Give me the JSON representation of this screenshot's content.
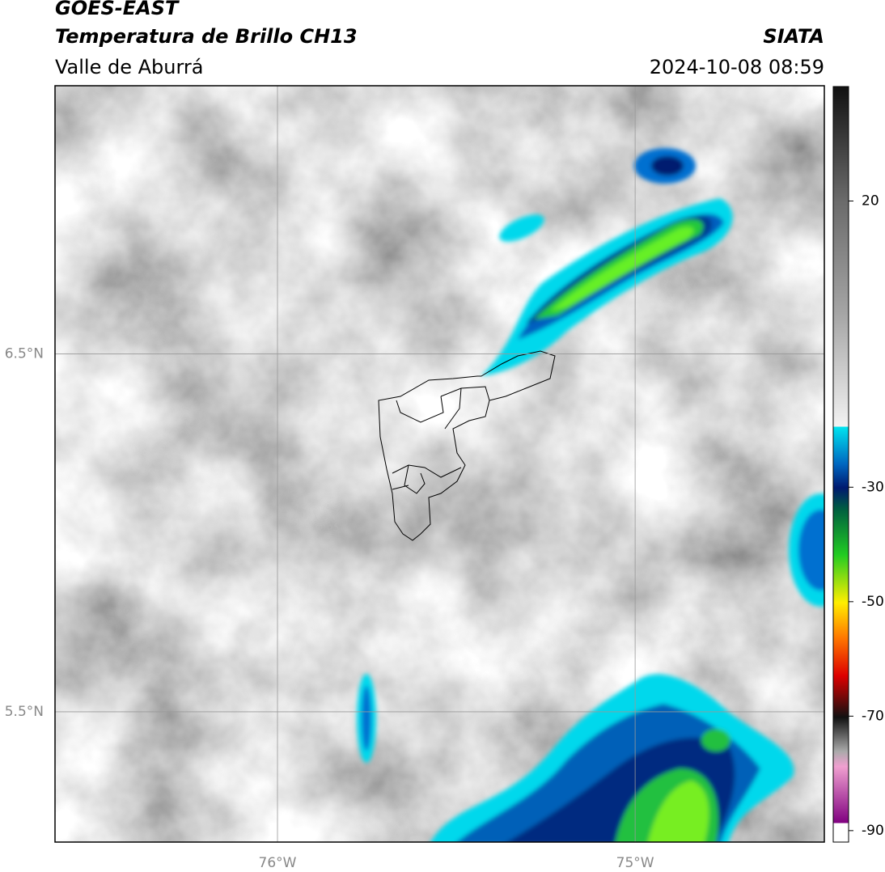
{
  "header": {
    "title": "GOES-EAST",
    "subtitle": "Temperatura de Brillo CH13",
    "region": "Valle de Aburrá",
    "source": "SIATA",
    "timestamp": "2024-10-08 08:59"
  },
  "map": {
    "xlim": [
      -76.622,
      -74.471
    ],
    "ylim": [
      5.136,
      7.249
    ],
    "xticks": [
      {
        "value": -76,
        "label": "76°W"
      },
      {
        "value": -75,
        "label": "75°W"
      }
    ],
    "yticks": [
      {
        "value": 6.5,
        "label": "6.5°N"
      },
      {
        "value": 5.5,
        "label": "5.5°N"
      }
    ]
  },
  "colorbar": {
    "lim": [
      -92,
      40
    ],
    "ticks": [
      20,
      -30,
      -50,
      -70,
      -90
    ]
  }
}
